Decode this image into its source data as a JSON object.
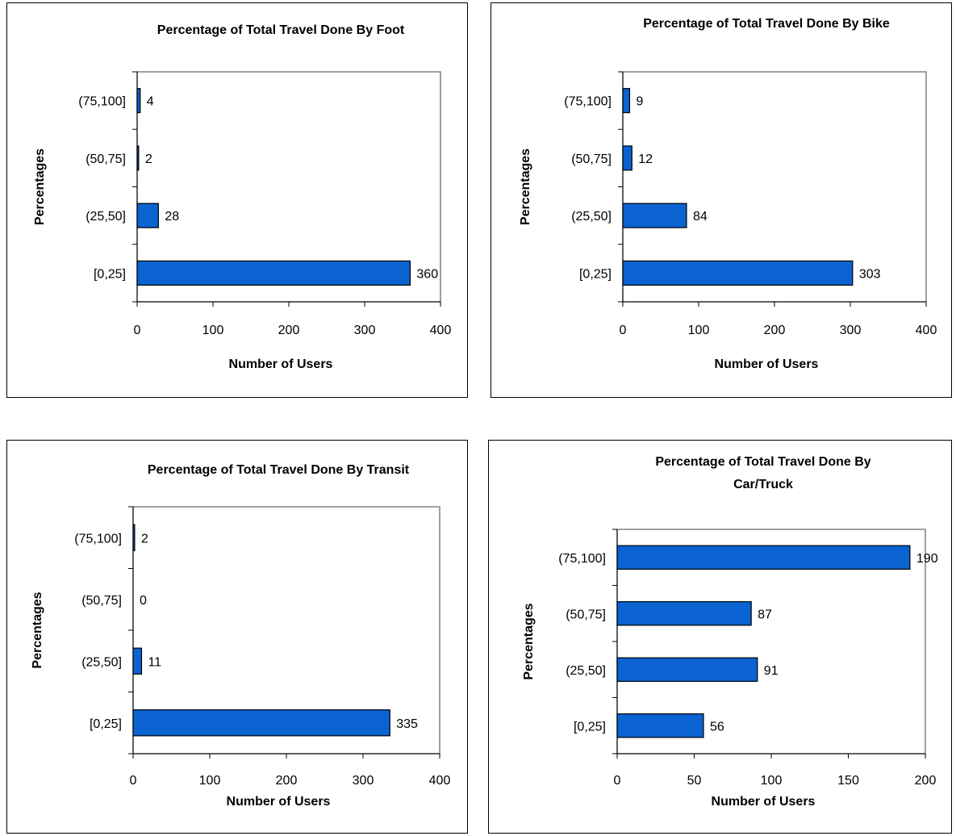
{
  "colors": {
    "bar_fill": "#0a63d1",
    "bar_stroke": "#000000",
    "plot_border": "#808080"
  },
  "chart_data": [
    {
      "type": "bar",
      "orientation": "horizontal",
      "title": "Percentage of Total Travel Done By Foot",
      "xlabel": "Number of Users",
      "ylabel": "Percentages",
      "categories": [
        "[0,25]",
        "(25,50]",
        "(50,75]",
        "(75,100]"
      ],
      "values": [
        360,
        28,
        2,
        4
      ],
      "xlim": [
        0,
        400
      ],
      "xticks": [
        "0",
        "100",
        "200",
        "300",
        "400"
      ],
      "grid": false,
      "legend": "none"
    },
    {
      "type": "bar",
      "orientation": "horizontal",
      "title": "Percentage of Total Travel Done By Bike",
      "xlabel": "Number of Users",
      "ylabel": "Percentages",
      "categories": [
        "[0,25]",
        "(25,50]",
        "(50,75]",
        "(75,100]"
      ],
      "values": [
        303,
        84,
        12,
        9
      ],
      "xlim": [
        0,
        400
      ],
      "xticks": [
        "0",
        "100",
        "200",
        "300",
        "400"
      ],
      "grid": false,
      "legend": "none"
    },
    {
      "type": "bar",
      "orientation": "horizontal",
      "title": "Percentage of Total Travel Done By Transit",
      "xlabel": "Number of Users",
      "ylabel": "Percentages",
      "categories": [
        "[0,25]",
        "(25,50]",
        "(50,75]",
        "(75,100]"
      ],
      "values": [
        335,
        11,
        0,
        2
      ],
      "xlim": [
        0,
        400
      ],
      "xticks": [
        "0",
        "100",
        "200",
        "300",
        "400"
      ],
      "grid": false,
      "legend": "none"
    },
    {
      "type": "bar",
      "orientation": "horizontal",
      "title": [
        "Percentage of Total Travel Done By",
        "Car/Truck"
      ],
      "xlabel": "Number of Users",
      "ylabel": "Percentages",
      "categories": [
        "[0,25]",
        "(25,50]",
        "(50,75]",
        "(75,100]"
      ],
      "values": [
        56,
        91,
        87,
        190
      ],
      "xlim": [
        0,
        200
      ],
      "xticks": [
        "0",
        "50",
        "100",
        "150",
        "200"
      ],
      "grid": false,
      "legend": "none"
    }
  ]
}
